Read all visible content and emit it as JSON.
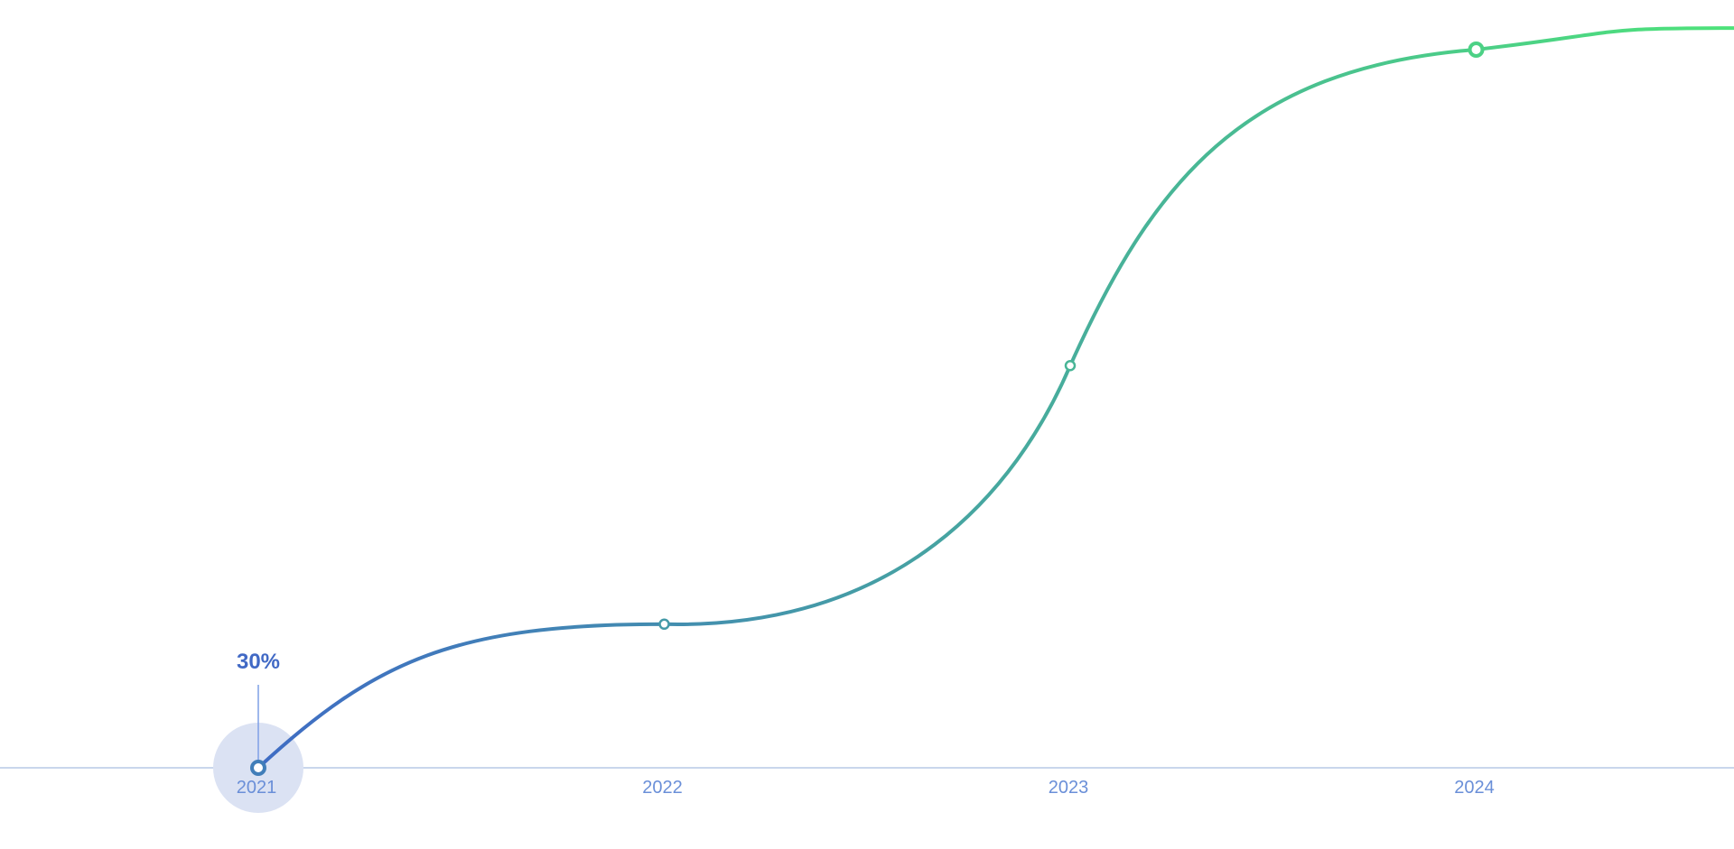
{
  "chart_data": {
    "type": "line",
    "categories": [
      "2021",
      "2022",
      "2023",
      "2024"
    ],
    "series": [
      {
        "values": [
          30,
          35,
          44,
          55
        ]
      }
    ],
    "highlight": {
      "category": "2021",
      "label": "30%"
    },
    "colors": {
      "line_start": "#3f6cc4",
      "line_end": "#4ee37a",
      "axis": "#b7c8e6",
      "tick_label": "#6a8fd8",
      "value_label": "#4169c5",
      "highlight_halo": "#dbe2f3"
    },
    "grid": false,
    "legend": "none"
  }
}
